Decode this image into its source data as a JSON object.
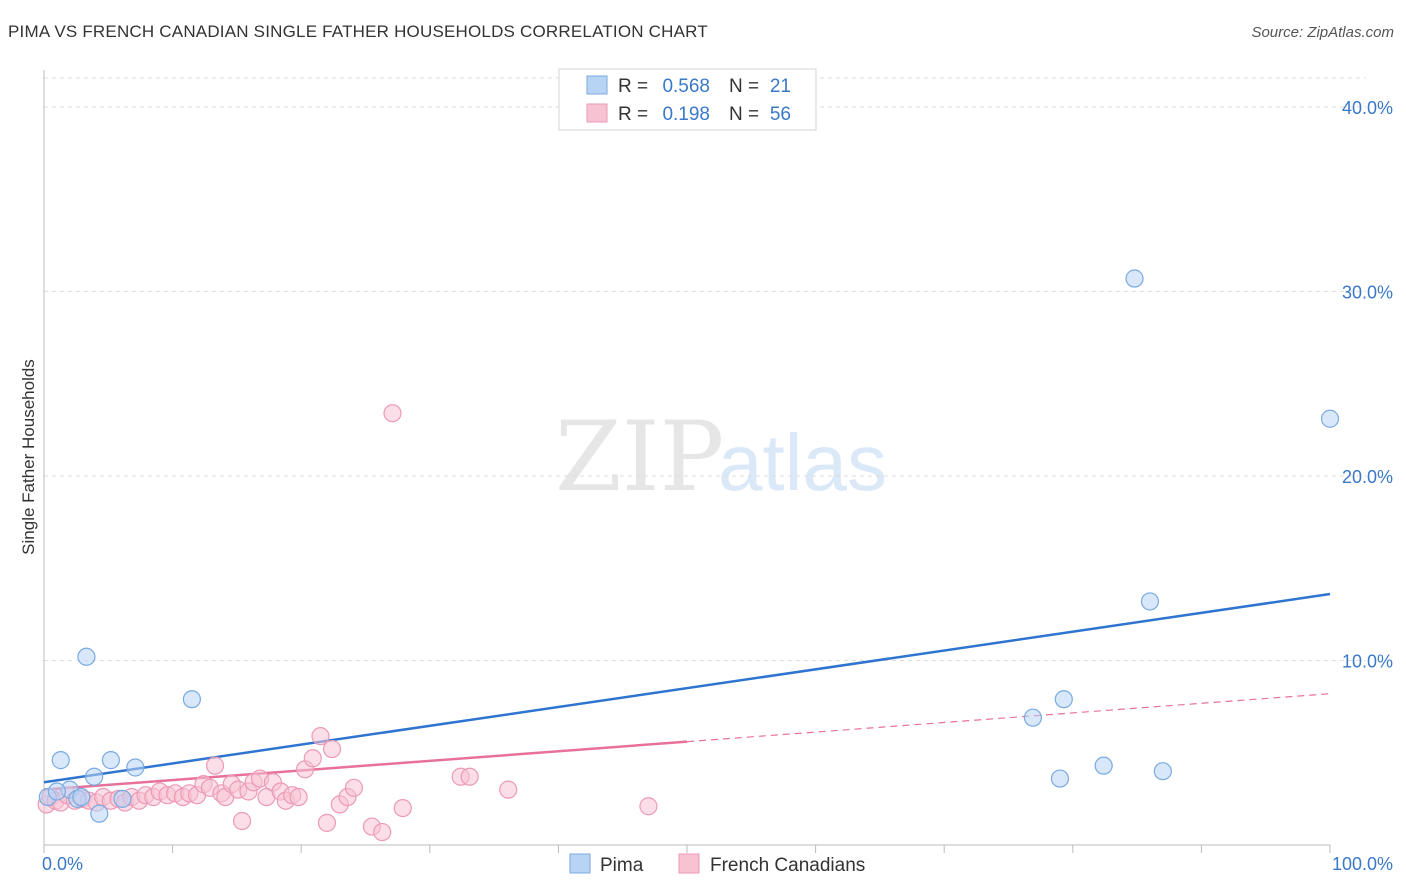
{
  "header": {
    "title": "PIMA VS FRENCH CANADIAN SINGLE FATHER HOUSEHOLDS CORRELATION CHART",
    "source": "Source: ZipAtlas.com"
  },
  "watermark": {
    "zip": "ZIP",
    "atlas": "atlas"
  },
  "legend": {
    "rows": [
      {
        "r_label": "R =",
        "r_value": "0.568",
        "n_label": "N =",
        "n_value": "21"
      },
      {
        "r_label": "R =",
        "r_value": "0.198",
        "n_label": "N =",
        "n_value": "56"
      }
    ]
  },
  "chart_data": {
    "type": "scatter",
    "title": "PIMA VS FRENCH CANADIAN SINGLE FATHER HOUSEHOLDS CORRELATION CHART",
    "xlabel": "",
    "ylabel": "Single Father Households",
    "xlim": [
      0,
      100
    ],
    "ylim": [
      0,
      42
    ],
    "x_tick_labels": [
      "0.0%",
      "100.0%"
    ],
    "y_ticks": [
      10,
      20,
      30,
      40
    ],
    "y_tick_labels": [
      "10.0%",
      "20.0%",
      "30.0%",
      "40.0%"
    ],
    "grid": true,
    "legend_position": "top-center",
    "colors": {
      "pima_fill": "#b8d4f5",
      "pima_stroke": "#7aaae0",
      "pima_line": "#2f74d0",
      "fc_fill": "#f7c3d3",
      "fc_stroke": "#ec9ab5",
      "fc_line": "#e8719a",
      "grid": "#dddddd",
      "axis": "#bbbbbb"
    },
    "series": [
      {
        "name": "Pima",
        "r": 0.568,
        "n": 21,
        "trend": {
          "x": [
            0,
            100
          ],
          "y": [
            3.4,
            13.6
          ],
          "dashed_from": null
        },
        "points": [
          {
            "x": 0.3,
            "y": 2.6
          },
          {
            "x": 1.3,
            "y": 4.6
          },
          {
            "x": 2.0,
            "y": 3.0
          },
          {
            "x": 2.6,
            "y": 2.5
          },
          {
            "x": 3.3,
            "y": 10.2
          },
          {
            "x": 3.9,
            "y": 3.7
          },
          {
            "x": 4.3,
            "y": 1.7
          },
          {
            "x": 5.2,
            "y": 4.6
          },
          {
            "x": 6.1,
            "y": 2.5
          },
          {
            "x": 7.1,
            "y": 4.2
          },
          {
            "x": 11.5,
            "y": 7.9
          },
          {
            "x": 76.9,
            "y": 6.9
          },
          {
            "x": 79.0,
            "y": 3.6
          },
          {
            "x": 79.3,
            "y": 7.9
          },
          {
            "x": 82.4,
            "y": 4.3
          },
          {
            "x": 84.8,
            "y": 30.7
          },
          {
            "x": 86.0,
            "y": 13.2
          },
          {
            "x": 87.0,
            "y": 4.0
          },
          {
            "x": 100.0,
            "y": 23.1
          },
          {
            "x": 1.0,
            "y": 2.9
          },
          {
            "x": 2.9,
            "y": 2.6
          }
        ]
      },
      {
        "name": "French Canadians",
        "r": 0.198,
        "n": 56,
        "trend": {
          "x": [
            0,
            100
          ],
          "y": [
            3.0,
            8.2
          ],
          "dashed_from": 50
        },
        "points": [
          {
            "x": 0.2,
            "y": 2.2
          },
          {
            "x": 0.5,
            "y": 2.6
          },
          {
            "x": 0.9,
            "y": 2.4
          },
          {
            "x": 1.3,
            "y": 2.3
          },
          {
            "x": 1.8,
            "y": 2.7
          },
          {
            "x": 2.4,
            "y": 2.4
          },
          {
            "x": 3.0,
            "y": 2.5
          },
          {
            "x": 3.5,
            "y": 2.4
          },
          {
            "x": 4.1,
            "y": 2.3
          },
          {
            "x": 4.6,
            "y": 2.6
          },
          {
            "x": 5.2,
            "y": 2.4
          },
          {
            "x": 5.8,
            "y": 2.5
          },
          {
            "x": 6.3,
            "y": 2.3
          },
          {
            "x": 6.8,
            "y": 2.6
          },
          {
            "x": 7.4,
            "y": 2.4
          },
          {
            "x": 7.9,
            "y": 2.7
          },
          {
            "x": 8.5,
            "y": 2.6
          },
          {
            "x": 9.0,
            "y": 2.9
          },
          {
            "x": 9.6,
            "y": 2.7
          },
          {
            "x": 10.2,
            "y": 2.8
          },
          {
            "x": 10.8,
            "y": 2.6
          },
          {
            "x": 11.3,
            "y": 2.8
          },
          {
            "x": 11.9,
            "y": 2.7
          },
          {
            "x": 12.4,
            "y": 3.3
          },
          {
            "x": 12.9,
            "y": 3.1
          },
          {
            "x": 13.3,
            "y": 4.3
          },
          {
            "x": 13.8,
            "y": 2.8
          },
          {
            "x": 14.1,
            "y": 2.6
          },
          {
            "x": 14.6,
            "y": 3.3
          },
          {
            "x": 15.1,
            "y": 3.0
          },
          {
            "x": 15.4,
            "y": 1.3
          },
          {
            "x": 15.9,
            "y": 2.9
          },
          {
            "x": 16.3,
            "y": 3.4
          },
          {
            "x": 16.8,
            "y": 3.6
          },
          {
            "x": 17.3,
            "y": 2.6
          },
          {
            "x": 17.8,
            "y": 3.4
          },
          {
            "x": 18.4,
            "y": 2.9
          },
          {
            "x": 18.8,
            "y": 2.4
          },
          {
            "x": 19.3,
            "y": 2.7
          },
          {
            "x": 19.8,
            "y": 2.6
          },
          {
            "x": 20.3,
            "y": 4.1
          },
          {
            "x": 20.9,
            "y": 4.7
          },
          {
            "x": 21.5,
            "y": 5.9
          },
          {
            "x": 22.0,
            "y": 1.2
          },
          {
            "x": 22.4,
            "y": 5.2
          },
          {
            "x": 23.0,
            "y": 2.2
          },
          {
            "x": 23.6,
            "y": 2.6
          },
          {
            "x": 24.1,
            "y": 3.1
          },
          {
            "x": 25.5,
            "y": 1.0
          },
          {
            "x": 26.3,
            "y": 0.7
          },
          {
            "x": 27.1,
            "y": 23.4
          },
          {
            "x": 27.9,
            "y": 2.0
          },
          {
            "x": 32.4,
            "y": 3.7
          },
          {
            "x": 33.1,
            "y": 3.7
          },
          {
            "x": 36.1,
            "y": 3.0
          },
          {
            "x": 47.0,
            "y": 2.1
          }
        ]
      }
    ]
  },
  "bottom_legend": {
    "items": [
      {
        "label": "Pima"
      },
      {
        "label": "French Canadians"
      }
    ]
  }
}
